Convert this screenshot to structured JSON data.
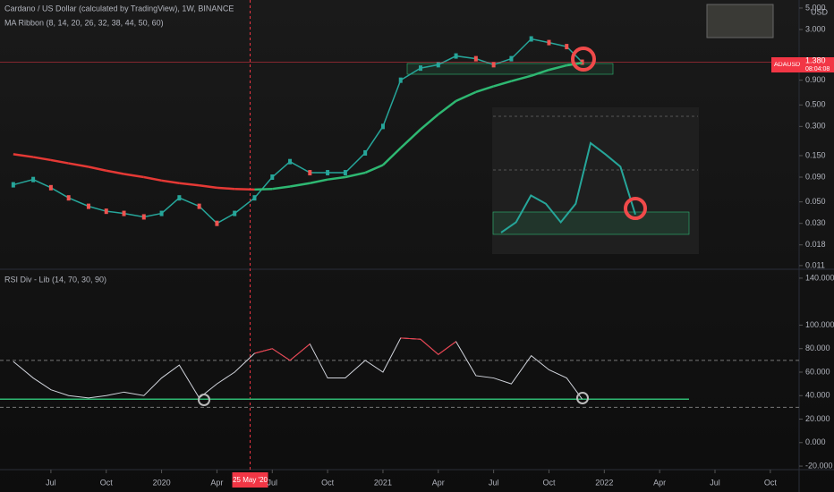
{
  "header": {
    "symbol": "Cardano / US Dollar (calculated by TradingView), 1W, BINANCE",
    "ribbon": "MA Ribbon (8, 14, 20, 26, 32, 38, 44, 50, 60)",
    "currency": "USD",
    "ticker": "ADAUSD",
    "last_price_label": "1.380",
    "countdown": "08:04:08"
  },
  "chart_data": [
    {
      "type": "line",
      "log_scale": true,
      "x": [
        2019.33,
        2019.42,
        2019.5,
        2019.58,
        2019.67,
        2019.75,
        2019.83,
        2019.92,
        2020.0,
        2020.08,
        2020.17,
        2020.25,
        2020.33,
        2020.42,
        2020.5,
        2020.58,
        2020.67,
        2020.75,
        2020.83,
        2020.92,
        2021.0,
        2021.08,
        2021.17,
        2021.25,
        2021.33,
        2021.42,
        2021.5,
        2021.58,
        2021.67,
        2021.75,
        2021.83,
        2021.9
      ],
      "series": [
        {
          "color": "#26a69a",
          "values": [
            0.075,
            0.085,
            0.07,
            0.055,
            0.045,
            0.04,
            0.038,
            0.035,
            0.038,
            0.055,
            0.045,
            0.03,
            0.038,
            0.055,
            0.09,
            0.13,
            0.1,
            0.1,
            0.1,
            0.16,
            0.3,
            0.9,
            1.2,
            1.3,
            1.6,
            1.5,
            1.3,
            1.5,
            2.4,
            2.2,
            2.0,
            1.38
          ]
        },
        {
          "color": "#2eb872",
          "color_falling": "#e53935",
          "values": [
            0.155,
            0.145,
            0.135,
            0.125,
            0.115,
            0.105,
            0.097,
            0.09,
            0.083,
            0.078,
            0.074,
            0.07,
            0.068,
            0.067,
            0.068,
            0.072,
            0.078,
            0.085,
            0.09,
            0.1,
            0.12,
            0.18,
            0.28,
            0.4,
            0.55,
            0.68,
            0.78,
            0.88,
            1.0,
            1.15,
            1.28,
            1.36
          ]
        }
      ],
      "xlim": [
        2019.27,
        2022.88
      ],
      "xticks": [
        {
          "value": 2019.5,
          "label": "Jul"
        },
        {
          "value": 2019.75,
          "label": "Oct"
        },
        {
          "value": 2020,
          "label": "2020"
        },
        {
          "value": 2020.25,
          "label": "Apr"
        },
        {
          "value": 2020.5,
          "label": "Jul"
        },
        {
          "value": 2020.75,
          "label": "Oct"
        },
        {
          "value": 2021,
          "label": "2021"
        },
        {
          "value": 2021.25,
          "label": "Apr"
        },
        {
          "value": 2021.5,
          "label": "Jul"
        },
        {
          "value": 2021.75,
          "label": "Oct"
        },
        {
          "value": 2022,
          "label": "2022"
        },
        {
          "value": 2022.25,
          "label": "Apr"
        },
        {
          "value": 2022.5,
          "label": "Jul"
        },
        {
          "value": 2022.75,
          "label": "Oct"
        }
      ],
      "ylim": [
        0.0103,
        6.05
      ],
      "yticks": [
        {
          "value": 5,
          "label": "5.000"
        },
        {
          "value": 3,
          "label": "3.000"
        },
        {
          "value": 0.9,
          "label": "0.900"
        },
        {
          "value": 0.5,
          "label": "0.500"
        },
        {
          "value": 0.3,
          "label": "0.300"
        },
        {
          "value": 0.15,
          "label": "0.150"
        },
        {
          "value": 0.09,
          "label": "0.090"
        },
        {
          "value": 0.05,
          "label": "0.050"
        },
        {
          "value": 0.03,
          "label": "0.030"
        },
        {
          "value": 0.018,
          "label": "0.018"
        },
        {
          "value": 0.011,
          "label": "0.011"
        }
      ],
      "crosshair": {
        "x": 2020.4,
        "label": "25 May '20"
      }
    },
    {
      "type": "line",
      "title": "RSI Div - Lib (14, 70, 30, 90)",
      "x": [
        2019.33,
        2019.42,
        2019.5,
        2019.58,
        2019.67,
        2019.75,
        2019.83,
        2019.92,
        2020.0,
        2020.08,
        2020.17,
        2020.25,
        2020.33,
        2020.42,
        2020.5,
        2020.58,
        2020.67,
        2020.75,
        2020.83,
        2020.92,
        2021.0,
        2021.08,
        2021.17,
        2021.25,
        2021.33,
        2021.42,
        2021.5,
        2021.58,
        2021.67,
        2021.75,
        2021.83,
        2021.9
      ],
      "series": [
        {
          "color": "#d1d4dc",
          "color_high": "#f23645",
          "values": [
            69,
            55,
            45,
            40,
            38,
            40,
            43,
            40,
            55,
            66,
            38,
            50,
            60,
            76,
            80,
            70,
            84,
            55,
            55,
            70,
            60,
            89,
            88,
            75,
            86,
            57,
            55,
            50,
            74,
            62,
            55,
            37
          ]
        }
      ],
      "xlim": [
        2019.27,
        2022.88
      ],
      "ylim": [
        -23,
        146.8
      ],
      "yticks": [
        {
          "value": 140,
          "label": "140.000"
        },
        {
          "value": 100,
          "label": "100.000"
        },
        {
          "value": 80,
          "label": "80.000"
        },
        {
          "value": 60,
          "label": "60.000"
        },
        {
          "value": 40,
          "label": "40.000"
        },
        {
          "value": 20,
          "label": "20.000"
        },
        {
          "value": 0,
          "label": "0.000"
        },
        {
          "value": -20,
          "label": "-20.000"
        }
      ],
      "bands": [
        70,
        30
      ],
      "support": 37
    }
  ]
}
